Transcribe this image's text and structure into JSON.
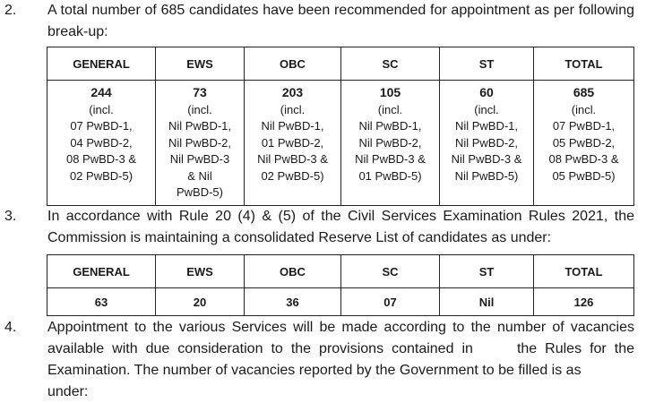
{
  "para2": {
    "number": "2.",
    "text": "A total number of 685 candidates have been recommended for appointment as per following break-up:"
  },
  "table1": {
    "headers": [
      "GENERAL",
      "EWS",
      "OBC",
      "SC",
      "ST",
      "TOTAL"
    ],
    "totals": [
      "244",
      "73",
      "203",
      "105",
      "60",
      "685"
    ],
    "details": [
      "(incl.\n07 PwBD-1,\n04 PwBD-2,\n08 PwBD-3 &\n02 PwBD-5)",
      "(incl.\nNil PwBD-1,\nNil PwBD-2,\nNil PwBD-3\n& Nil\nPwBD-5)",
      "(incl.\nNil PwBD-1,\n01 PwBD-2,\nNil PwBD-3 &\n02 PwBD-5)",
      "(incl.\nNil PwBD-1,\nNil PwBD-2,\nNil PwBD-3 &\n01 PwBD-5)",
      "(incl.\nNil PwBD-1,\nNil PwBD-2,\nNil PwBD-3 &\nNil PwBD-5)",
      "(incl.\n07 PwBD-1,\n05 PwBD-2,\n08 PwBD-3 &\n05 PwBD-5)"
    ]
  },
  "para3": {
    "number": "3.",
    "text": "In accordance with Rule 20 (4) & (5) of the Civil Services Examination Rules 2021, the Commission is maintaining a consolidated Reserve List of  candidates as under:"
  },
  "table2": {
    "headers": [
      "GENERAL",
      "EWS",
      "OBC",
      "SC",
      "ST",
      "TOTAL"
    ],
    "values": [
      "63",
      "20",
      "36",
      "07",
      "Nil",
      "126"
    ]
  },
  "para4": {
    "number": "4.",
    "text_a": "Appointment to the various Services will be made according to the number of vacancies available with due consideration to the provisions contained in",
    "text_b": "the Rules for the Examination. The number of vacancies reported by the Government to be filled is as",
    "text_c": "under:"
  }
}
